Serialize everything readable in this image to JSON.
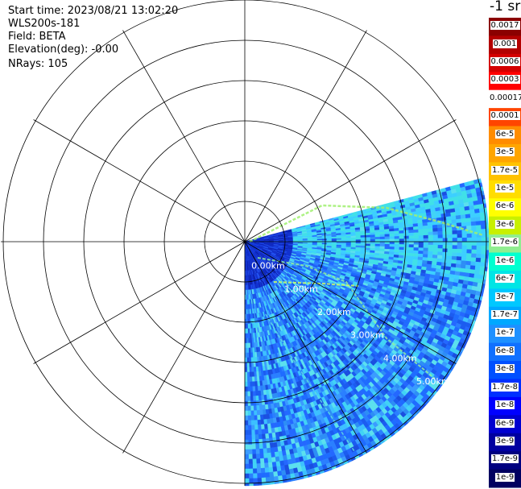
{
  "header": {
    "start_time": "Start time: 2023/08/21 13:02:20",
    "instrument": "WLS200s-181",
    "field": "Field: BETA",
    "elevation": "Elevation(deg): -0.00",
    "nrays": "NRays: 105"
  },
  "ppi": {
    "range_labels": [
      "0.00km",
      "1.00km",
      "2.00km",
      "3.00km",
      "4.00km",
      "5.00km"
    ],
    "sector_start_deg": 75,
    "sector_end_deg": 180,
    "nrays": 105,
    "colors": {
      "ring": "#000000",
      "range_label": "#ffffff",
      "background": "#ffffff"
    }
  },
  "colorbar": {
    "title": "-1 sr",
    "ticks": [
      "0.0017",
      "0.001",
      "0.0006",
      "0.0003",
      "0.00017",
      "0.0001",
      "6e-5",
      "3e-5",
      "1.7e-5",
      "1e-5",
      "6e-6",
      "3e-6",
      "1.7e-6",
      "1e-6",
      "6e-7",
      "3e-7",
      "1.7e-7",
      "1e-7",
      "6e-8",
      "3e-8",
      "1.7e-8",
      "1e-8",
      "6e-9",
      "3e-9",
      "1.7e-9",
      "1e-9"
    ],
    "colors": [
      "#8b0000",
      "#b30000",
      "#d40000",
      "#ff0000",
      "#ffffff",
      "#ff4500",
      "#ff8c00",
      "#ffa500",
      "#ffc200",
      "#ffdd00",
      "#ffff00",
      "#c8f000",
      "#90ee90",
      "#00ffd0",
      "#00e5e5",
      "#00c8ff",
      "#00a8ff",
      "#1e90ff",
      "#1070ff",
      "#0050ff",
      "#0030ff",
      "#0000ff",
      "#0000d0",
      "#0000a0",
      "#000080",
      "#000060"
    ]
  }
}
